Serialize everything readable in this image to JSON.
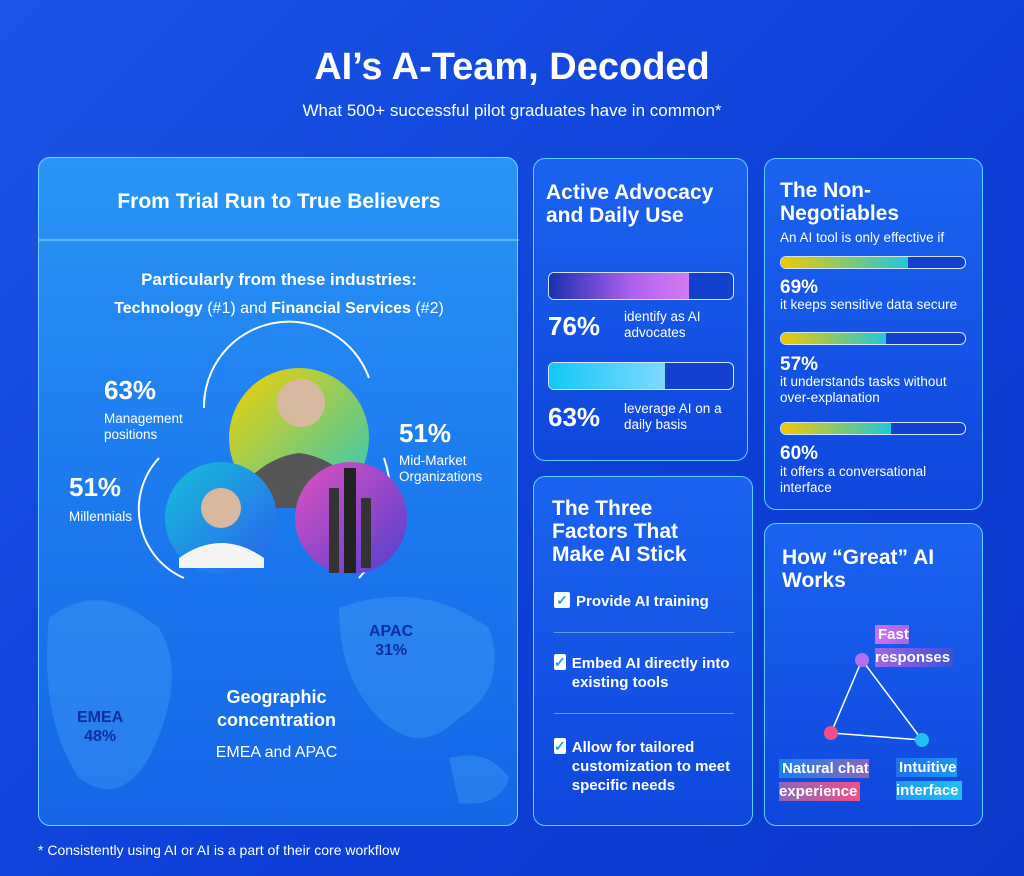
{
  "header": {
    "title": "AI’s A-Team, Decoded",
    "subtitle": "What 500+ successful pilot graduates have in common*"
  },
  "trial_panel": {
    "title": "From Trial Run to True Believers",
    "industries_heading": "Particularly from these industries:",
    "industries_line": [
      "Technology",
      " (#1) and ",
      "Financial Services",
      " (#2)"
    ],
    "stats": [
      {
        "value": "63%",
        "label": "Management positions"
      },
      {
        "value": "51%",
        "label": "Millennials"
      },
      {
        "value": "51%",
        "label": "Mid-Market Organizations"
      }
    ],
    "regions": [
      {
        "name": "APAC",
        "value": "31%"
      },
      {
        "name": "EMEA",
        "value": "48%"
      }
    ],
    "geo_heading": "Geographic concentration",
    "geo_text": "EMEA and APAC"
  },
  "advocacy": {
    "title": "Active Advocacy and Daily Use",
    "items": [
      {
        "percent": {
          "value": 76,
          "label": "76%"
        },
        "text": "identify as AI advocates"
      },
      {
        "percent": {
          "value": 63,
          "label": "63%"
        },
        "text": "leverage AI on a daily basis"
      }
    ]
  },
  "non_negotiables": {
    "title": "The Non-Negotiables",
    "subtitle": "An AI tool is only effective if",
    "items": [
      {
        "percent": {
          "value": 69,
          "label": "69%"
        },
        "text": "it keeps sensitive data secure"
      },
      {
        "percent": {
          "value": 57,
          "label": "57%"
        },
        "text": "it understands tasks without over-explanation"
      },
      {
        "percent": {
          "value": 60,
          "label": "60%"
        },
        "text": "it offers a conversational interface"
      }
    ]
  },
  "factors": {
    "title": "The Three Factors That Make AI Stick",
    "items": [
      "Provide AI training",
      "Embed AI directly into existing tools",
      "Allow for tailored customization to meet specific needs"
    ]
  },
  "great_ai": {
    "title": "How “Great” AI Works",
    "nodes": [
      "Fast responses",
      "Natural chat experience",
      "Intuitive interface"
    ]
  },
  "footnote": "* Consistently using AI or AI is a part of their core workflow"
}
